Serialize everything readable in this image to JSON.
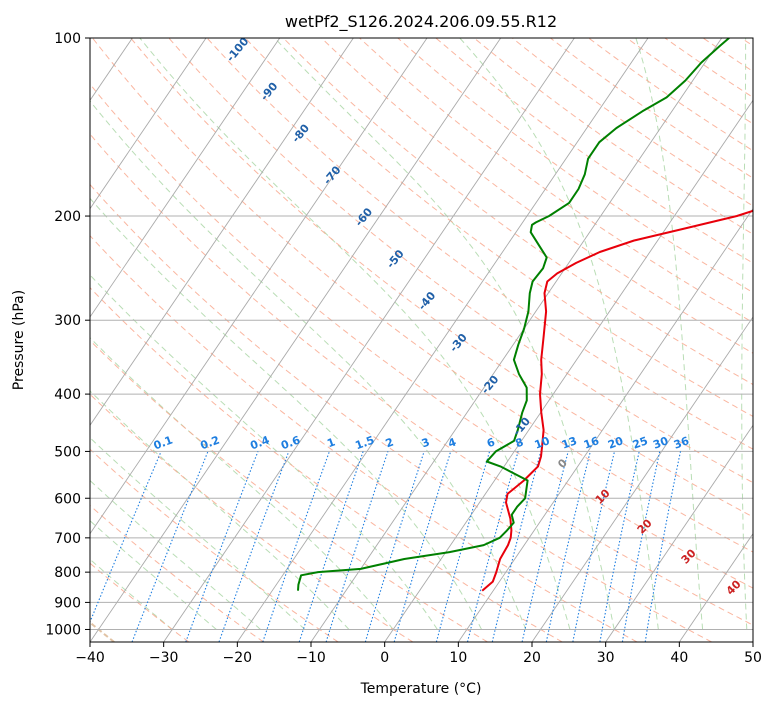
{
  "chart_data": {
    "type": "line",
    "subtype": "skew-t log-p diagram",
    "title": "wetPf2_S126.2024.206.09.55.R12",
    "xlabel": "Temperature (°C)",
    "ylabel": "Pressure (hPa)",
    "xlim": [
      -40,
      50
    ],
    "ylim": [
      1050,
      100
    ],
    "y_scale": "log",
    "x_ticks": [
      -40,
      -30,
      -20,
      -10,
      0,
      10,
      20,
      30,
      40,
      50
    ],
    "y_ticks": [
      100,
      200,
      300,
      400,
      500,
      600,
      700,
      800,
      900,
      1000
    ],
    "grid": true,
    "series": [
      {
        "name": "",
        "color": "#e8000b",
        "points": [
          [
            8.5,
            860
          ],
          [
            9.1,
            830
          ],
          [
            8.7,
            800
          ],
          [
            8.0,
            760
          ],
          [
            7.8,
            720
          ],
          [
            7.5,
            700
          ],
          [
            6.9,
            680
          ],
          [
            5.7,
            650
          ],
          [
            3.6,
            610
          ],
          [
            3.0,
            590
          ],
          [
            4.0,
            560
          ],
          [
            4.6,
            530
          ],
          [
            4.1,
            510
          ],
          [
            3.3,
            490
          ],
          [
            2.0,
            460
          ],
          [
            0.1,
            430
          ],
          [
            -1.8,
            400
          ],
          [
            -3.4,
            370
          ],
          [
            -4.8,
            350
          ],
          [
            -6.6,
            320
          ],
          [
            -8.6,
            290
          ],
          [
            -10.5,
            270
          ],
          [
            -11.2,
            258
          ],
          [
            -10.6,
            250
          ],
          [
            -9.0,
            240
          ],
          [
            -6.8,
            230
          ],
          [
            -3.2,
            220
          ],
          [
            2.5,
            210
          ],
          [
            8.5,
            200
          ],
          [
            12.8,
            190
          ],
          [
            15.8,
            175
          ],
          [
            19.5,
            160
          ],
          [
            24.5,
            145
          ],
          [
            29.5,
            132
          ],
          [
            33.8,
            122
          ],
          [
            38.0,
            113
          ],
          [
            40.5,
            107
          ],
          [
            42.5,
            102
          ],
          [
            43.5,
            100
          ]
        ]
      },
      {
        "name": "",
        "color": "#008000",
        "points": [
          [
            -16.5,
            860
          ],
          [
            -17.0,
            840
          ],
          [
            -17.5,
            810
          ],
          [
            -15.5,
            800
          ],
          [
            -10.0,
            790
          ],
          [
            -5.0,
            760
          ],
          [
            0.5,
            740
          ],
          [
            4.5,
            720
          ],
          [
            6.0,
            700
          ],
          [
            6.3,
            680
          ],
          [
            6.5,
            660
          ],
          [
            5.5,
            640
          ],
          [
            5.5,
            620
          ],
          [
            5.8,
            600
          ],
          [
            4.5,
            560
          ],
          [
            -0.5,
            530
          ],
          [
            -2.8,
            520
          ],
          [
            -2.5,
            500
          ],
          [
            -1.0,
            480
          ],
          [
            -1.5,
            460
          ],
          [
            -2.5,
            430
          ],
          [
            -3.0,
            410
          ],
          [
            -4.2,
            390
          ],
          [
            -6.5,
            370
          ],
          [
            -8.5,
            350
          ],
          [
            -9.3,
            330
          ],
          [
            -10.0,
            310
          ],
          [
            -11.0,
            290
          ],
          [
            -12.5,
            270
          ],
          [
            -13.2,
            258
          ],
          [
            -13.0,
            245
          ],
          [
            -13.5,
            235
          ],
          [
            -15.5,
            225
          ],
          [
            -18.0,
            213
          ],
          [
            -18.5,
            207
          ],
          [
            -18.2,
            205
          ],
          [
            -17.0,
            200
          ],
          [
            -15.5,
            190
          ],
          [
            -15.5,
            180
          ],
          [
            -16.0,
            170
          ],
          [
            -17.0,
            160
          ],
          [
            -17.0,
            150
          ],
          [
            -16.0,
            142
          ],
          [
            -14.0,
            133
          ],
          [
            -12.0,
            126
          ],
          [
            -11.0,
            118
          ],
          [
            -10.5,
            110
          ],
          [
            -9.5,
            103
          ],
          [
            -9.0,
            100
          ]
        ]
      }
    ],
    "dry_adiabat_labels": [
      "-100",
      "-90",
      "-80",
      "-70",
      "-60",
      "-50",
      "-40",
      "-30",
      "-20",
      "-10"
    ],
    "mixing_ratio_labels": [
      "0.1",
      "0.2",
      "0.4",
      "0.6",
      "1",
      "1.5",
      "2",
      "3",
      "4",
      "6",
      "8",
      "10",
      "13",
      "16",
      "20",
      "25",
      "30",
      "36"
    ],
    "moist_adiabat_labels": [
      "0",
      "10",
      "20",
      "30",
      "40"
    ],
    "colors": {
      "temperature": "#e8000b",
      "dewpoint": "#008000",
      "isotherm": "#aaaaaa",
      "dry_adiabat": "#f9a98f",
      "moist_adiabat": "#a8d5a2",
      "mixing_ratio": "#1e7ee0",
      "dry_label": "#2060a8",
      "moist_label": "#cc2222"
    }
  }
}
